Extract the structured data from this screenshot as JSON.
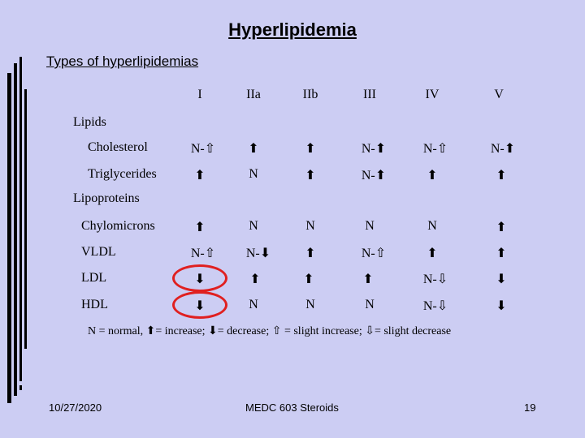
{
  "title": "Hyperlipidemia",
  "subtitle": "Types of hyperlipidemias",
  "columns": [
    "I",
    "IIa",
    "IIb",
    "III",
    "IV",
    "V"
  ],
  "sections": {
    "lipids": "Lipids",
    "lipoproteins": "Lipoproteins"
  },
  "rows": {
    "cholesterol": {
      "label": "Cholesterol",
      "values": [
        "N-⇧",
        "⬆",
        "⬆",
        "N-⬆",
        "N-⇧",
        "N-⬆"
      ]
    },
    "triglycerides": {
      "label": "Triglycerides",
      "values": [
        "⬆",
        "N",
        "⬆",
        "N-⬆",
        "⬆",
        "⬆"
      ]
    },
    "chylomicrons": {
      "label": "Chylomicrons",
      "values": [
        "⬆",
        "N",
        "N",
        "N",
        "N",
        "⬆"
      ]
    },
    "vldl": {
      "label": "VLDL",
      "values": [
        "N-⇧",
        "N-⬇",
        "⬆",
        "N-⇧",
        "⬆",
        "⬆"
      ]
    },
    "ldl": {
      "label": "LDL",
      "values": [
        "⬇",
        "⬆",
        "⬆",
        "⬆",
        "N-⇩",
        "⬇"
      ]
    },
    "hdl": {
      "label": "HDL",
      "values": [
        "⬇",
        "N",
        "N",
        "N",
        "N-⇩",
        "⬇"
      ]
    }
  },
  "legend": "N = normal, ⬆= increase; ⬇= decrease; ⇧ = slight increase; ⇩= slight decrease",
  "footer": {
    "date": "10/27/2020",
    "course": "MEDC 603 Steroids",
    "page": "19"
  },
  "colors": {
    "background": "#cccdf3",
    "highlight": "#e02020"
  }
}
